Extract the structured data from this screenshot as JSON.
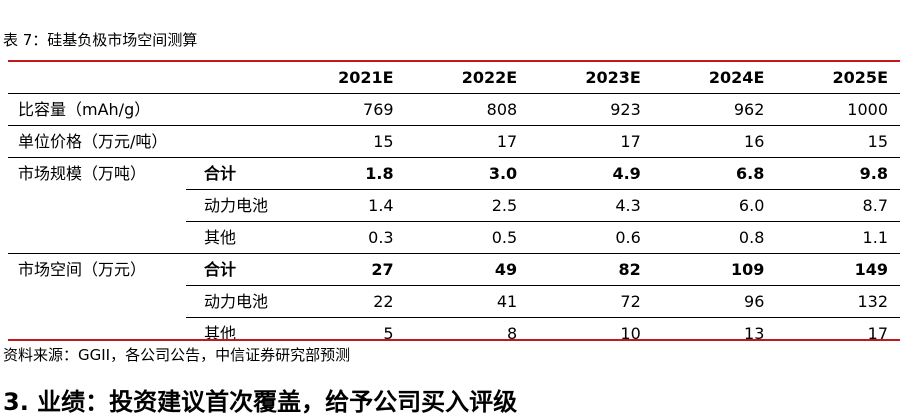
{
  "caption": "表 7：硅基负极市场空间测算",
  "columns": [
    "2021E",
    "2022E",
    "2023E",
    "2024E",
    "2025E"
  ],
  "rows": [
    {
      "label": "比容量（mAh/g）",
      "sub": "",
      "values": [
        "769",
        "808",
        "923",
        "962",
        "1000"
      ]
    },
    {
      "label": "单位价格（万元/吨）",
      "sub": "",
      "values": [
        "15",
        "17",
        "17",
        "16",
        "15"
      ]
    },
    {
      "label": "市场规模（万吨）",
      "sub": "合计",
      "values": [
        "1.8",
        "3.0",
        "4.9",
        "6.8",
        "9.8"
      ]
    },
    {
      "label": "",
      "sub": "动力电池",
      "values": [
        "1.4",
        "2.5",
        "4.3",
        "6.0",
        "8.7"
      ]
    },
    {
      "label": "",
      "sub": "其他",
      "values": [
        "0.3",
        "0.5",
        "0.6",
        "0.8",
        "1.1"
      ]
    },
    {
      "label": "市场空间（万元）",
      "sub": "合计",
      "values": [
        "27",
        "49",
        "82",
        "109",
        "149"
      ]
    },
    {
      "label": "",
      "sub": "动力电池",
      "values": [
        "22",
        "41",
        "72",
        "96",
        "132"
      ]
    },
    {
      "label": "",
      "sub": "其他",
      "values": [
        "5",
        "8",
        "10",
        "13",
        "17"
      ]
    }
  ],
  "source": "资料来源：GGII，各公司公告，中信证券研究部预测",
  "next_heading": "3. 业绩：投资建议首次覆盖，给予公司买入评级"
}
